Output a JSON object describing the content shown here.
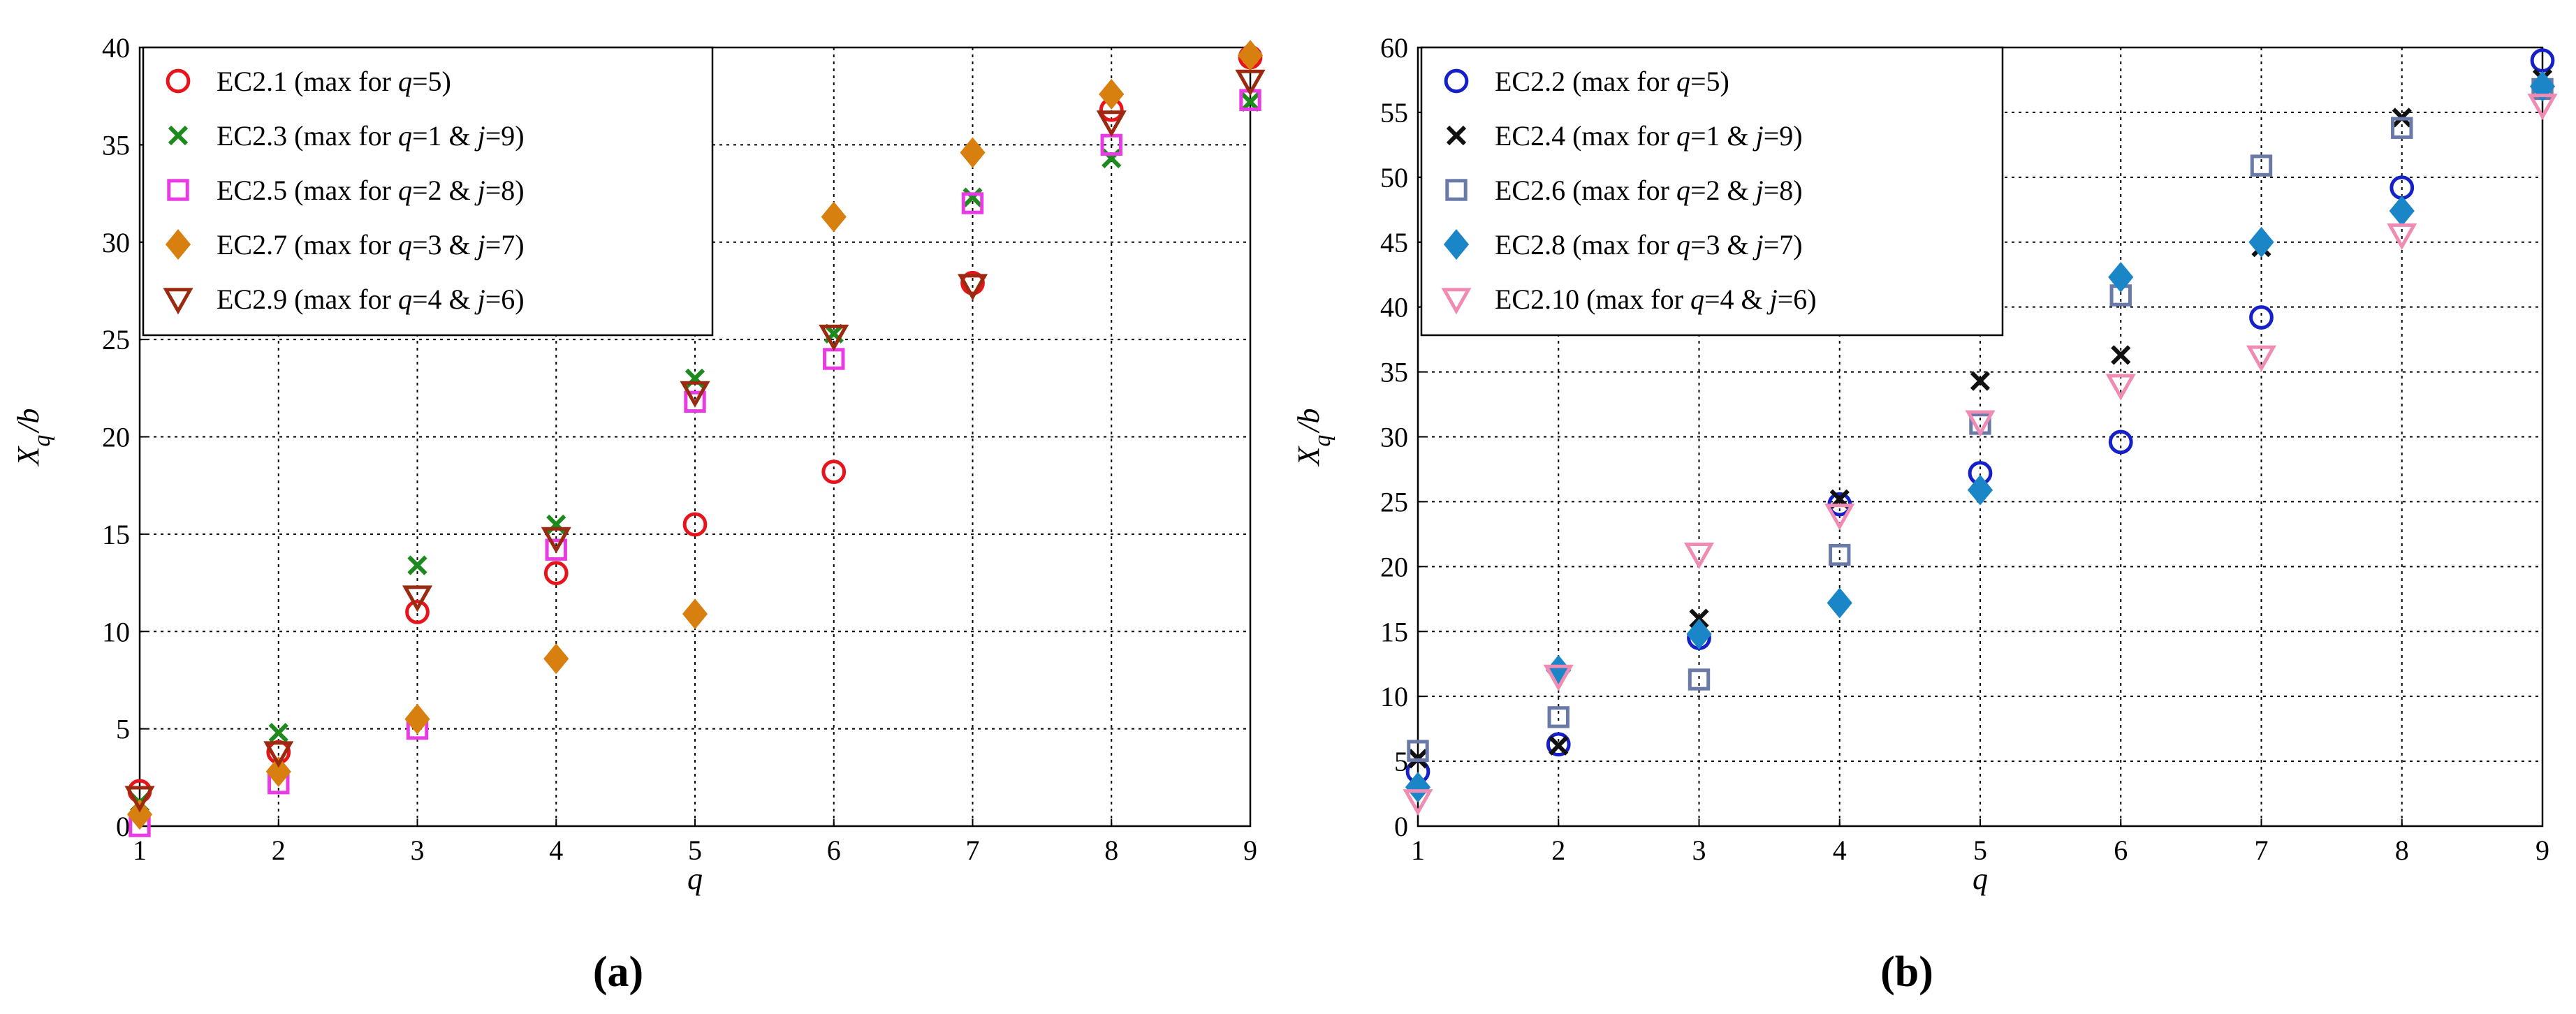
{
  "chart_data": [
    {
      "type": "scatter",
      "id": "a",
      "caption": "(a)",
      "xlabel": "q",
      "ylabel_main": "X",
      "ylabel_sub": "q",
      "ylabel_suffix": "/b",
      "xlim": [
        1,
        9
      ],
      "ylim": [
        0,
        40
      ],
      "xticks": [
        1,
        2,
        3,
        4,
        5,
        6,
        7,
        8,
        9
      ],
      "yticks": [
        0,
        5,
        10,
        15,
        20,
        25,
        30,
        35,
        40
      ],
      "grid": true,
      "legend_position": "top-left",
      "x": [
        1,
        2,
        3,
        4,
        5,
        6,
        7,
        8,
        9
      ],
      "series": [
        {
          "name": "EC2.1",
          "note": "(max for q=5)",
          "legend": [
            "EC2.1 (max for ",
            "q",
            "=5)"
          ],
          "marker": "circle",
          "color": "#e8141b",
          "values": [
            1.8,
            3.8,
            11.0,
            13.0,
            15.5,
            18.2,
            27.9,
            36.8,
            39.5
          ]
        },
        {
          "name": "EC2.3",
          "note": "(max for q=1 & j=9)",
          "legend": [
            "EC2.3 (max for ",
            "q",
            "=1 & ",
            "j",
            "=9)"
          ],
          "marker": "x",
          "color": "#1c8a1c",
          "values": [
            1.2,
            4.8,
            13.4,
            15.5,
            23.0,
            25.3,
            32.3,
            34.3,
            37.2
          ]
        },
        {
          "name": "EC2.5",
          "note": "(max for q=2 & j=8)",
          "legend": [
            "EC2.5 (max for ",
            "q",
            "=2 & ",
            "j",
            "=8)"
          ],
          "marker": "square",
          "color": "#e83be3",
          "values": [
            0.0,
            2.2,
            5.0,
            14.2,
            21.8,
            24.0,
            32.0,
            35.0,
            37.3
          ]
        },
        {
          "name": "EC2.7",
          "note": "(max for q=3 & j=7)",
          "legend": [
            "EC2.7 (max for ",
            "q",
            "=3 & ",
            "j",
            "=7)"
          ],
          "marker": "diamond",
          "color": "#d8800f",
          "values": [
            0.6,
            2.8,
            5.5,
            8.6,
            10.9,
            31.3,
            34.6,
            37.6,
            39.6
          ]
        },
        {
          "name": "EC2.9",
          "note": "(max for q=4 & j=6)",
          "legend": [
            "EC2.9 (max for ",
            "q",
            "=4 & ",
            "j",
            "=6)"
          ],
          "marker": "triangle",
          "color": "#9a2a10",
          "values": [
            1.5,
            3.8,
            11.8,
            14.8,
            22.3,
            25.2,
            27.8,
            36.2,
            38.3
          ]
        }
      ]
    },
    {
      "type": "scatter",
      "id": "b",
      "caption": "(b)",
      "xlabel": "q",
      "ylabel_main": "X",
      "ylabel_sub": "q",
      "ylabel_suffix": "/b",
      "xlim": [
        1,
        9
      ],
      "ylim": [
        0,
        60
      ],
      "xticks": [
        1,
        2,
        3,
        4,
        5,
        6,
        7,
        8,
        9
      ],
      "yticks": [
        0,
        5,
        10,
        15,
        20,
        25,
        30,
        35,
        40,
        45,
        50,
        55,
        60
      ],
      "grid": true,
      "legend_position": "top-left",
      "x": [
        1,
        2,
        3,
        4,
        5,
        6,
        7,
        8,
        9
      ],
      "series": [
        {
          "name": "EC2.2",
          "note": "(max for q=5)",
          "legend": [
            "EC2.2 (max for ",
            "q",
            "=5)"
          ],
          "marker": "circle",
          "color": "#1520c8",
          "values": [
            4.2,
            6.3,
            14.5,
            24.8,
            27.2,
            29.6,
            39.2,
            49.2,
            59.0
          ]
        },
        {
          "name": "EC2.4",
          "note": "(max for q=1 & j=9)",
          "legend": [
            "EC2.4 (max for ",
            "q",
            "=1 & ",
            "j",
            "=9)"
          ],
          "marker": "x",
          "color": "#111111",
          "values": [
            5.2,
            6.2,
            16.0,
            25.2,
            34.3,
            36.3,
            44.6,
            54.6,
            57.6
          ]
        },
        {
          "name": "EC2.6",
          "note": "(max for q=2 & j=8)",
          "legend": [
            "EC2.6 (max for ",
            "q",
            "=2 & ",
            "j",
            "=8)"
          ],
          "marker": "square",
          "color": "#6a7aa8",
          "values": [
            5.8,
            8.4,
            11.3,
            20.9,
            31.0,
            40.9,
            50.9,
            53.8,
            56.8
          ]
        },
        {
          "name": "EC2.8",
          "note": "(max for q=3 & j=7)",
          "legend": [
            "EC2.8 (max for ",
            "q",
            "=3 & ",
            "j",
            "=7)"
          ],
          "marker": "diamond",
          "color": "#1a86c8",
          "values": [
            3.0,
            12.0,
            14.8,
            17.2,
            25.9,
            42.3,
            45.0,
            47.4,
            57.0
          ]
        },
        {
          "name": "EC2.10",
          "note": "(max for q=4 & j=6)",
          "legend": [
            "EC2.10 (max for ",
            "q",
            "=4 & ",
            "j",
            "=6)"
          ],
          "marker": "triangle",
          "color": "#f08cb4",
          "values": [
            2.0,
            11.6,
            21.0,
            24.0,
            31.2,
            34.0,
            36.2,
            45.6,
            55.6
          ]
        }
      ]
    }
  ]
}
